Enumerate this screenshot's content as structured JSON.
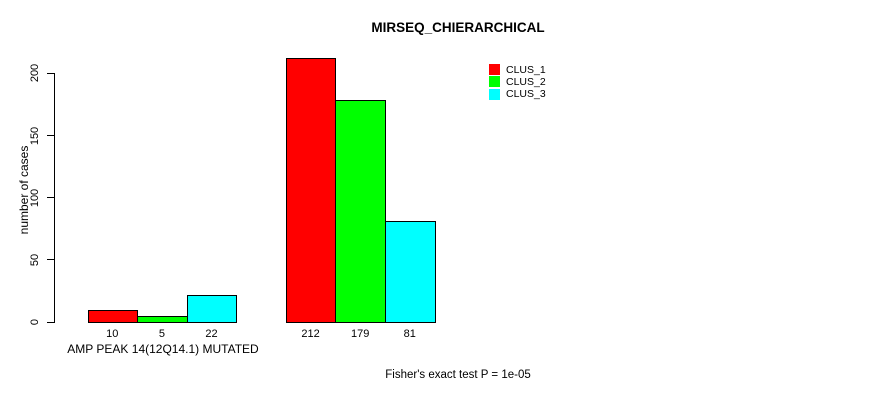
{
  "chart_data": {
    "type": "bar",
    "title": "MIRSEQ_CHIERARCHICAL",
    "ylabel": "number of cases",
    "xlabel": "AMP PEAK 14(12Q14.1) MUTATED",
    "footer": "Fisher's exact test P = 1e-05",
    "categories": [
      "AMP PEAK 14(12Q14.1) MUTATED",
      ""
    ],
    "series": [
      {
        "name": "CLUS_1",
        "color": "#ff0000",
        "values": [
          10,
          212
        ]
      },
      {
        "name": "CLUS_2",
        "color": "#00ff00",
        "values": [
          5,
          179
        ]
      },
      {
        "name": "CLUS_3",
        "color": "#00ffff",
        "values": [
          22,
          81
        ]
      }
    ],
    "bar_value_labels": [
      [
        "10",
        "5",
        "22"
      ],
      [
        "212",
        "179",
        "81"
      ]
    ],
    "yticks": [
      0,
      50,
      100,
      150,
      200
    ],
    "ylim": [
      0,
      214
    ],
    "grid": false,
    "legend_position": "top-right",
    "bar_border_color": "#000000"
  }
}
